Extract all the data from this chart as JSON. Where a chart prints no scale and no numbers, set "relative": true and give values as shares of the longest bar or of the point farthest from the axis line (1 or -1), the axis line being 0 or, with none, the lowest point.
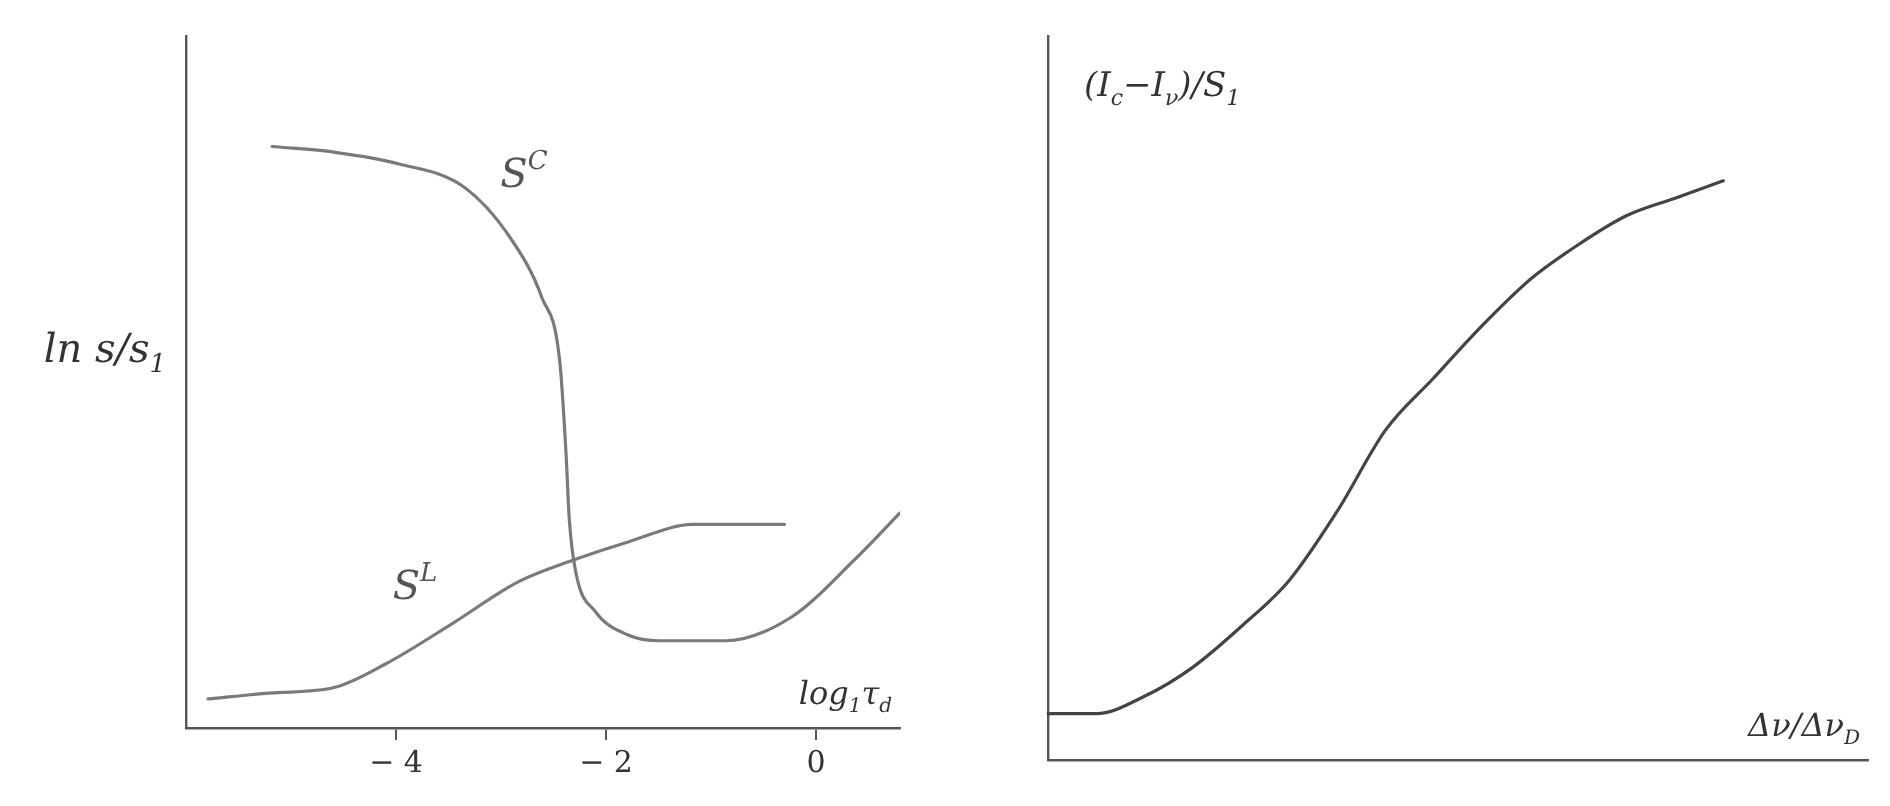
{
  "chart_data": [
    {
      "type": "line",
      "relative": true,
      "ylabel": "ln s/s$_{1}$",
      "xlabel": "log$_{1}$τ$_{d}$",
      "xlim": [
        -6,
        0.8
      ],
      "xticks": [
        -4,
        -2,
        0
      ],
      "tick_labels": "x",
      "legend": false,
      "grid": false,
      "marker": "none",
      "series": [
        {
          "name": "S$^{C}$",
          "color": "#7a7a7a",
          "x": [
            -5.18,
            -4.58,
            -3.97,
            -3.35,
            -2.9,
            -2.61,
            -2.44,
            -2.38,
            -2.35,
            -2.29,
            -2.1,
            -1.79,
            -1.49,
            -0.86,
            -0.24,
            0.37,
            0.8
          ],
          "values": [
            1.0,
            0.99,
            0.97,
            0.93,
            0.84,
            0.74,
            0.63,
            0.47,
            0.36,
            0.27,
            0.2,
            0.16,
            0.15,
            0.15,
            0.19,
            0.29,
            0.37
          ]
        },
        {
          "name": "S$^{L}$",
          "color": "#7a7a7a",
          "x": [
            -5.79,
            -5.21,
            -4.58,
            -4.1,
            -3.46,
            -2.85,
            -2.29,
            -1.79,
            -1.17,
            -0.3
          ],
          "values": [
            0.05,
            0.06,
            0.07,
            0.11,
            0.18,
            0.25,
            0.29,
            0.32,
            0.35,
            0.35
          ]
        }
      ]
    },
    {
      "type": "line",
      "relative": true,
      "ylabel": "(I$_{c}$−I$_{ν}$)/S$_{1}$",
      "xlabel": "Δν/Δν$_{D}$",
      "tick_labels": false,
      "legend": false,
      "grid": false,
      "marker": "none",
      "categories": [
        null,
        null,
        null,
        null,
        null,
        null,
        null,
        null,
        null,
        null,
        null,
        null,
        null,
        null,
        null,
        null,
        null,
        null
      ],
      "series": [
        {
          "color": "#444444",
          "values": [
            0.08,
            0.08,
            0.11,
            0.16,
            0.23,
            0.31,
            0.43,
            0.57,
            0.66,
            0.75,
            0.83,
            0.89,
            0.94,
            0.97,
            1.0,
            null,
            null,
            null
          ]
        }
      ]
    }
  ]
}
